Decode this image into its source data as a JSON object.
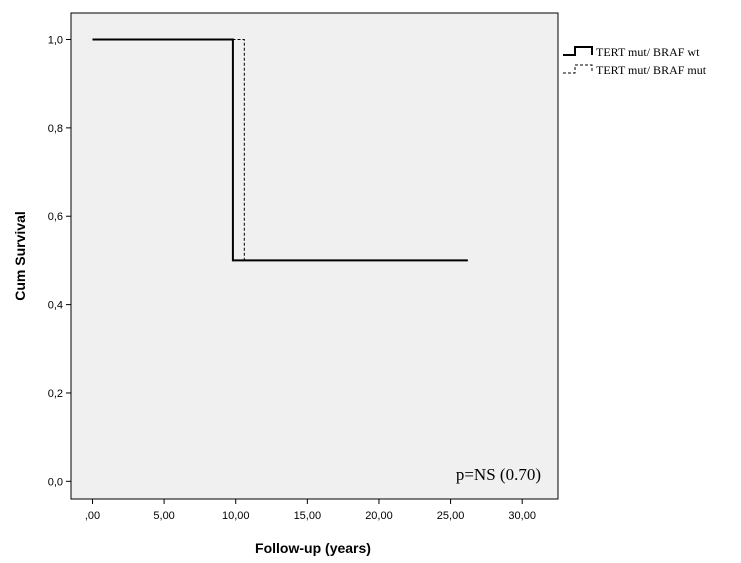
{
  "chart_data": {
    "type": "line",
    "step": true,
    "xlabel": "Follow-up (years)",
    "ylabel": "Cum Survival",
    "xlim": [
      -1.5,
      32.5
    ],
    "ylim": [
      -0.04,
      1.06
    ],
    "x_ticks": [
      0,
      5,
      10,
      15,
      20,
      25,
      30
    ],
    "x_tick_labels": [
      ",00",
      "5,00",
      "10,00",
      "15,00",
      "20,00",
      "25,00",
      "30,00"
    ],
    "y_ticks": [
      0,
      0.2,
      0.4,
      0.6,
      0.8,
      1.0
    ],
    "y_tick_labels": [
      "0,0",
      "0,2",
      "0,4",
      "0,6",
      "0,8",
      "1,0"
    ],
    "series": [
      {
        "name": "TERT mut/ BRAF wt",
        "style": "solid",
        "color": "#000000",
        "points": [
          [
            0,
            1.0
          ],
          [
            9.8,
            1.0
          ],
          [
            9.8,
            0.5
          ],
          [
            26.2,
            0.5
          ]
        ]
      },
      {
        "name": "TERT mut/ BRAF mut",
        "style": "dashed",
        "color": "#000000",
        "points": [
          [
            0,
            1.0
          ],
          [
            10.6,
            1.0
          ],
          [
            10.6,
            0.5
          ],
          [
            26.2,
            0.5
          ]
        ]
      }
    ],
    "annotation": "p=NS (0.70)",
    "grid": false,
    "legend_position": "right",
    "plot_background": "#f0f0f0"
  }
}
